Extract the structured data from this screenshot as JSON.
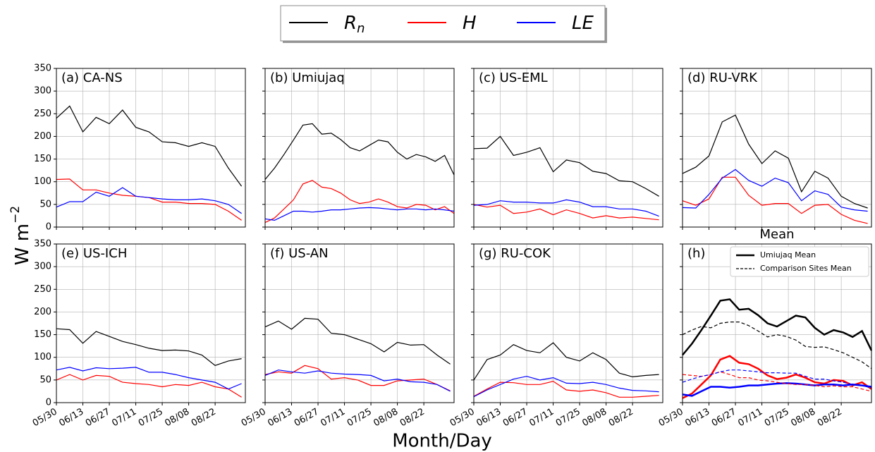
{
  "figure": {
    "legend": [
      {
        "name": "R",
        "sub": "n",
        "color": "#000000"
      },
      {
        "name": "H",
        "color": "#ff0000"
      },
      {
        "name": "LE",
        "color": "#0000ff"
      }
    ],
    "ylabel": "W m",
    "ylabel_sup": "−2",
    "xlabel": "Month/Day"
  },
  "chart_data": [
    {
      "type": "line",
      "panel_label": "(a) CA-NS",
      "x": [
        0,
        7,
        14,
        21,
        28,
        35,
        42,
        49,
        56,
        63,
        70,
        77,
        84,
        91,
        98
      ],
      "xlim": [
        0,
        100
      ],
      "xticks": [
        0,
        14,
        28,
        42,
        56,
        70,
        84
      ],
      "ylim": [
        0,
        350
      ],
      "yticks": [
        0,
        50,
        100,
        150,
        200,
        250,
        300,
        350
      ],
      "grid": true,
      "series": [
        {
          "color": "#000000",
          "values": [
            240,
            267,
            210,
            242,
            228,
            258,
            220,
            210,
            188,
            186,
            178,
            186,
            178,
            130,
            90
          ]
        },
        {
          "color": "#ff0000",
          "values": [
            105,
            106,
            82,
            82,
            75,
            70,
            68,
            65,
            55,
            55,
            52,
            52,
            50,
            35,
            15
          ]
        },
        {
          "color": "#0000ff",
          "values": [
            44,
            56,
            56,
            77,
            68,
            87,
            68,
            65,
            62,
            60,
            60,
            62,
            58,
            50,
            30
          ]
        }
      ]
    },
    {
      "type": "line",
      "panel_label": "(b) Umiujaq",
      "x": [
        0,
        5,
        10,
        15,
        20,
        25,
        30,
        35,
        40,
        45,
        50,
        55,
        60,
        65,
        70,
        75,
        80,
        85,
        90,
        95,
        100
      ],
      "xlim": [
        0,
        100
      ],
      "xticks": [
        0,
        14,
        28,
        42,
        56,
        70,
        84
      ],
      "ylim": [
        0,
        350
      ],
      "yticks": [
        0,
        50,
        100,
        150,
        200,
        250,
        300,
        350
      ],
      "grid": true,
      "series": [
        {
          "color": "#000000",
          "values": [
            105,
            130,
            160,
            192,
            225,
            228,
            205,
            207,
            193,
            175,
            168,
            180,
            192,
            188,
            165,
            150,
            160,
            155,
            145,
            158,
            115
          ]
        },
        {
          "color": "#ff0000",
          "values": [
            10,
            20,
            40,
            60,
            95,
            103,
            88,
            85,
            75,
            60,
            52,
            55,
            62,
            55,
            45,
            42,
            50,
            48,
            38,
            45,
            30
          ]
        },
        {
          "color": "#0000ff",
          "values": [
            18,
            15,
            25,
            35,
            35,
            33,
            35,
            38,
            38,
            40,
            42,
            43,
            42,
            40,
            38,
            40,
            40,
            38,
            40,
            38,
            35
          ]
        }
      ]
    },
    {
      "type": "line",
      "panel_label": "(c) US-EML",
      "x": [
        0,
        7,
        14,
        21,
        28,
        35,
        42,
        49,
        56,
        63,
        70,
        77,
        84,
        91,
        98
      ],
      "xlim": [
        0,
        100
      ],
      "xticks": [
        0,
        14,
        28,
        42,
        56,
        70,
        84
      ],
      "ylim": [
        0,
        350
      ],
      "yticks": [
        0,
        50,
        100,
        150,
        200,
        250,
        300,
        350
      ],
      "grid": true,
      "series": [
        {
          "color": "#000000",
          "values": [
            173,
            174,
            200,
            158,
            165,
            175,
            122,
            148,
            142,
            123,
            118,
            102,
            100,
            85,
            68
          ]
        },
        {
          "color": "#ff0000",
          "values": [
            50,
            44,
            48,
            30,
            33,
            40,
            27,
            38,
            30,
            20,
            25,
            20,
            22,
            19,
            16
          ]
        },
        {
          "color": "#0000ff",
          "values": [
            48,
            50,
            58,
            55,
            55,
            53,
            53,
            60,
            55,
            45,
            45,
            40,
            40,
            35,
            24
          ]
        }
      ]
    },
    {
      "type": "line",
      "panel_label": "(d) RU-VRK",
      "x": [
        0,
        7,
        14,
        21,
        28,
        35,
        42,
        49,
        56,
        63,
        70,
        77,
        84,
        91,
        98
      ],
      "xlim": [
        0,
        100
      ],
      "xticks": [
        0,
        14,
        28,
        42,
        56,
        70,
        84
      ],
      "ylim": [
        0,
        350
      ],
      "yticks": [
        0,
        50,
        100,
        150,
        200,
        250,
        300,
        350
      ],
      "grid": true,
      "series": [
        {
          "color": "#000000",
          "values": [
            118,
            132,
            157,
            232,
            247,
            183,
            140,
            168,
            152,
            78,
            123,
            108,
            68,
            52,
            42
          ]
        },
        {
          "color": "#ff0000",
          "values": [
            58,
            48,
            62,
            110,
            110,
            70,
            48,
            52,
            52,
            30,
            48,
            50,
            28,
            15,
            8
          ]
        },
        {
          "color": "#0000ff",
          "values": [
            43,
            42,
            72,
            108,
            127,
            103,
            90,
            108,
            98,
            58,
            80,
            72,
            44,
            38,
            35
          ]
        }
      ]
    },
    {
      "type": "line",
      "panel_label": "(e) US-ICH",
      "x": [
        0,
        7,
        14,
        21,
        28,
        35,
        42,
        49,
        56,
        63,
        70,
        77,
        84,
        91,
        98
      ],
      "xlim": [
        0,
        100
      ],
      "xticks": [
        {
          "value": 0,
          "label": "05/30"
        },
        {
          "value": 14,
          "label": "06/13"
        },
        {
          "value": 28,
          "label": "06/27"
        },
        {
          "value": 42,
          "label": "07/11"
        },
        {
          "value": 56,
          "label": "07/25"
        },
        {
          "value": 70,
          "label": "08/08"
        },
        {
          "value": 84,
          "label": "08/22"
        }
      ],
      "ylim": [
        0,
        350
      ],
      "yticks": [
        0,
        50,
        100,
        150,
        200,
        250,
        300,
        350
      ],
      "grid": true,
      "series": [
        {
          "color": "#000000",
          "values": [
            163,
            161,
            131,
            157,
            146,
            135,
            128,
            120,
            115,
            116,
            114,
            105,
            82,
            92,
            97
          ]
        },
        {
          "color": "#ff0000",
          "values": [
            50,
            62,
            50,
            60,
            58,
            45,
            42,
            40,
            35,
            40,
            38,
            45,
            35,
            30,
            12
          ]
        },
        {
          "color": "#0000ff",
          "values": [
            72,
            78,
            70,
            77,
            75,
            76,
            78,
            67,
            67,
            62,
            55,
            50,
            45,
            30,
            42
          ]
        }
      ]
    },
    {
      "type": "line",
      "panel_label": "(f) US-AN",
      "x": [
        0,
        7,
        14,
        21,
        28,
        35,
        42,
        49,
        56,
        63,
        70,
        77,
        84,
        91,
        98
      ],
      "xlim": [
        0,
        100
      ],
      "xticks": [
        {
          "value": 0,
          "label": "05/30"
        },
        {
          "value": 14,
          "label": "06/13"
        },
        {
          "value": 28,
          "label": "06/27"
        },
        {
          "value": 42,
          "label": "07/11"
        },
        {
          "value": 56,
          "label": "07/25"
        },
        {
          "value": 70,
          "label": "08/08"
        },
        {
          "value": 84,
          "label": "08/22"
        }
      ],
      "ylim": [
        0,
        350
      ],
      "yticks": [
        0,
        50,
        100,
        150,
        200,
        250,
        300,
        350
      ],
      "grid": true,
      "series": [
        {
          "color": "#000000",
          "values": [
            167,
            180,
            162,
            186,
            184,
            153,
            150,
            140,
            130,
            112,
            133,
            127,
            128,
            105,
            85
          ]
        },
        {
          "color": "#ff0000",
          "values": [
            62,
            68,
            65,
            82,
            75,
            52,
            55,
            50,
            38,
            38,
            48,
            50,
            52,
            40,
            26
          ]
        },
        {
          "color": "#0000ff",
          "values": [
            60,
            72,
            68,
            65,
            70,
            65,
            63,
            62,
            60,
            48,
            52,
            46,
            45,
            40,
            25
          ]
        }
      ]
    },
    {
      "type": "line",
      "panel_label": "(g) RU-COK",
      "x": [
        0,
        7,
        14,
        21,
        28,
        35,
        42,
        49,
        56,
        63,
        70,
        77,
        84,
        91,
        98
      ],
      "xlim": [
        0,
        100
      ],
      "xticks": [
        {
          "value": 0,
          "label": "05/30"
        },
        {
          "value": 14,
          "label": "06/13"
        },
        {
          "value": 28,
          "label": "06/27"
        },
        {
          "value": 42,
          "label": "07/11"
        },
        {
          "value": 56,
          "label": "07/25"
        },
        {
          "value": 70,
          "label": "08/08"
        },
        {
          "value": 84,
          "label": "08/22"
        }
      ],
      "ylim": [
        0,
        350
      ],
      "yticks": [
        0,
        50,
        100,
        150,
        200,
        250,
        300,
        350
      ],
      "grid": true,
      "series": [
        {
          "color": "#000000",
          "values": [
            50,
            95,
            105,
            128,
            115,
            110,
            132,
            100,
            92,
            110,
            95,
            65,
            57,
            60,
            62
          ]
        },
        {
          "color": "#ff0000",
          "values": [
            14,
            30,
            45,
            44,
            40,
            40,
            47,
            28,
            25,
            28,
            22,
            12,
            12,
            14,
            16
          ]
        },
        {
          "color": "#0000ff",
          "values": [
            13,
            28,
            40,
            52,
            58,
            50,
            55,
            43,
            42,
            45,
            40,
            32,
            27,
            26,
            24
          ]
        }
      ]
    },
    {
      "type": "line",
      "title": "Mean",
      "panel_label": "(h)",
      "x": [
        0,
        5,
        10,
        15,
        20,
        25,
        30,
        35,
        40,
        45,
        50,
        55,
        60,
        65,
        70,
        75,
        80,
        85,
        90,
        95,
        100
      ],
      "xlim": [
        0,
        100
      ],
      "xticks": [
        {
          "value": 0,
          "label": "05/30"
        },
        {
          "value": 14,
          "label": "06/13"
        },
        {
          "value": 28,
          "label": "06/27"
        },
        {
          "value": 42,
          "label": "07/11"
        },
        {
          "value": 56,
          "label": "07/25"
        },
        {
          "value": 70,
          "label": "08/08"
        },
        {
          "value": 84,
          "label": "08/22"
        }
      ],
      "ylim": [
        0,
        350
      ],
      "yticks": [
        0,
        50,
        100,
        150,
        200,
        250,
        300,
        350
      ],
      "grid": true,
      "legend": [
        {
          "name": "Umiujaq Mean",
          "linewidth": 2.5,
          "dashed": false
        },
        {
          "name": "Comparison Sites Mean",
          "linewidth": 1.2,
          "dashed": true
        }
      ],
      "series": [
        {
          "color": "#000000",
          "linewidth": 2.5,
          "values": [
            105,
            130,
            160,
            192,
            225,
            228,
            205,
            207,
            193,
            175,
            168,
            180,
            192,
            188,
            165,
            150,
            160,
            155,
            145,
            158,
            115
          ]
        },
        {
          "color": "#ff0000",
          "linewidth": 2.5,
          "values": [
            10,
            20,
            40,
            60,
            95,
            103,
            88,
            85,
            75,
            60,
            52,
            55,
            62,
            55,
            45,
            42,
            50,
            48,
            38,
            45,
            30
          ]
        },
        {
          "color": "#0000ff",
          "linewidth": 2.5,
          "values": [
            18,
            15,
            25,
            35,
            35,
            33,
            35,
            38,
            38,
            40,
            42,
            43,
            42,
            40,
            38,
            40,
            40,
            38,
            40,
            38,
            35
          ]
        },
        {
          "color": "#000000",
          "dashed": true,
          "values": [
            150,
            160,
            168,
            165,
            175,
            178,
            178,
            170,
            158,
            145,
            150,
            146,
            138,
            124,
            122,
            123,
            117,
            110,
            100,
            90,
            75
          ]
        },
        {
          "color": "#ff0000",
          "dashed": true,
          "values": [
            62,
            60,
            58,
            62,
            68,
            62,
            55,
            55,
            50,
            48,
            45,
            42,
            40,
            40,
            38,
            35,
            37,
            35,
            35,
            30,
            25
          ]
        },
        {
          "color": "#0000ff",
          "dashed": true,
          "values": [
            45,
            52,
            58,
            62,
            68,
            72,
            72,
            70,
            68,
            66,
            66,
            65,
            65,
            58,
            52,
            52,
            48,
            45,
            40,
            38,
            32
          ]
        }
      ]
    }
  ]
}
